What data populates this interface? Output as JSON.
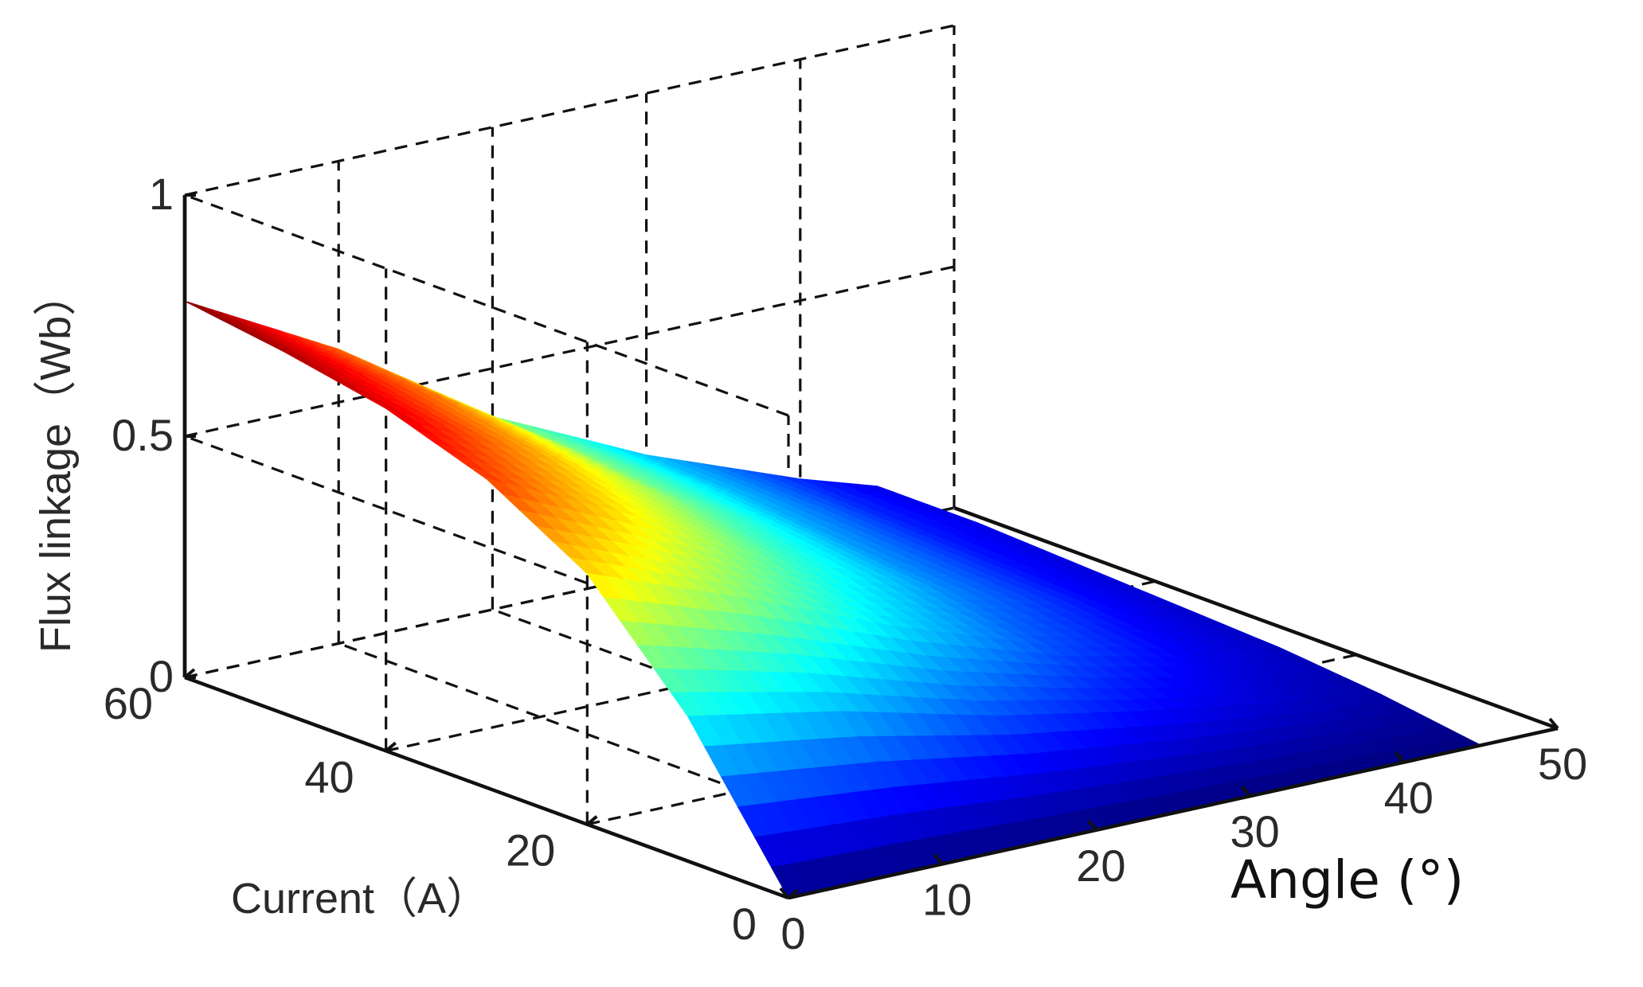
{
  "chart_data": {
    "type": "surface3d",
    "zlabel": "Flux linkage（Wb）",
    "ylabel": "Current（A）",
    "xlabel": "Angle (°)",
    "x_axis": {
      "name": "Angle",
      "range": [
        0,
        50
      ],
      "ticks": [
        "0",
        "10",
        "20",
        "30",
        "40",
        "50"
      ]
    },
    "y_axis": {
      "name": "Current",
      "range": [
        0,
        60
      ],
      "ticks": [
        "0",
        "20",
        "40",
        "60"
      ]
    },
    "z_axis": {
      "name": "Flux linkage",
      "range": [
        0,
        1
      ],
      "ticks": [
        "0",
        "0.5",
        "1"
      ]
    },
    "surface": {
      "angle": [
        0,
        10,
        20,
        30,
        40,
        45
      ],
      "current": [
        0,
        10,
        20,
        30,
        40,
        50,
        60
      ],
      "flux": [
        [
          0.0,
          0.0,
          0.0,
          0.0,
          0.0,
          0.0
        ],
        [
          0.3,
          0.24,
          0.16,
          0.1,
          0.05,
          0.03
        ],
        [
          0.52,
          0.4,
          0.27,
          0.16,
          0.08,
          0.05
        ],
        [
          0.64,
          0.49,
          0.33,
          0.2,
          0.1,
          0.06
        ],
        [
          0.71,
          0.55,
          0.37,
          0.22,
          0.11,
          0.07
        ],
        [
          0.75,
          0.59,
          0.39,
          0.24,
          0.12,
          0.08
        ],
        [
          0.78,
          0.61,
          0.4,
          0.25,
          0.13,
          0.08
        ]
      ]
    },
    "colormap": "jet",
    "grid": true
  }
}
